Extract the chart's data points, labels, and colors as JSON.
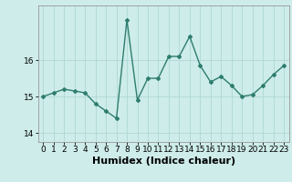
{
  "x": [
    0,
    1,
    2,
    3,
    4,
    5,
    6,
    7,
    8,
    9,
    10,
    11,
    12,
    13,
    14,
    15,
    16,
    17,
    18,
    19,
    20,
    21,
    22,
    23
  ],
  "y": [
    15.0,
    15.1,
    15.2,
    15.15,
    15.1,
    14.8,
    14.6,
    14.4,
    17.1,
    14.9,
    15.5,
    15.5,
    16.1,
    16.1,
    16.65,
    15.85,
    15.4,
    15.55,
    15.3,
    15.0,
    15.05,
    15.3,
    15.6,
    15.85
  ],
  "line_color": "#2e7d6e",
  "bg_color": "#cdecea",
  "grid_color": "#afd8d5",
  "xlabel": "Humidex (Indice chaleur)",
  "ylim": [
    13.75,
    17.5
  ],
  "yticks": [
    14,
    15,
    16
  ],
  "xlim": [
    -0.5,
    23.5
  ],
  "xticks": [
    0,
    1,
    2,
    3,
    4,
    5,
    6,
    7,
    8,
    9,
    10,
    11,
    12,
    13,
    14,
    15,
    16,
    17,
    18,
    19,
    20,
    21,
    22,
    23
  ],
  "marker": "D",
  "markersize": 2.0,
  "linewidth": 1.0,
  "xlabel_fontsize": 8,
  "tick_fontsize": 6.5
}
